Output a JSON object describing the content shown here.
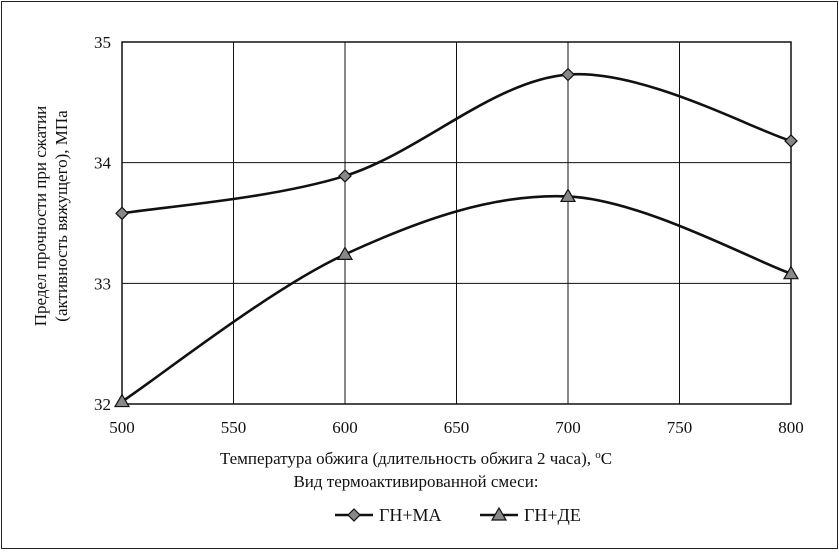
{
  "chart_data": {
    "type": "line",
    "title": "",
    "xlabel_main": "Температура обжига (длительность обжига 2 часа), ",
    "xlabel_sup": "o",
    "xlabel_unit": "C",
    "ylabel_line1": "Предел прочности при сжатии",
    "ylabel_line2": "(активность вяжущего), МПа",
    "xlim": [
      500,
      800
    ],
    "ylim": [
      32,
      35
    ],
    "x_ticks": [
      "500",
      "550",
      "600",
      "650",
      "700",
      "750",
      "800"
    ],
    "y_ticks": [
      "32",
      "33",
      "34",
      "35"
    ],
    "grid": true,
    "smooth": true,
    "legend_title": "Вид термоактивированной смеси:",
    "legend_position": "bottom",
    "x": [
      500,
      600,
      700,
      800
    ],
    "series": [
      {
        "name": "ГН+МА",
        "marker": "diamond",
        "color": "#111111",
        "values": [
          33.58,
          33.89,
          34.73,
          34.18
        ]
      },
      {
        "name": "ГН+ДЕ",
        "marker": "triangle",
        "color": "#111111",
        "values": [
          32.02,
          33.24,
          33.72,
          33.08
        ]
      }
    ]
  }
}
